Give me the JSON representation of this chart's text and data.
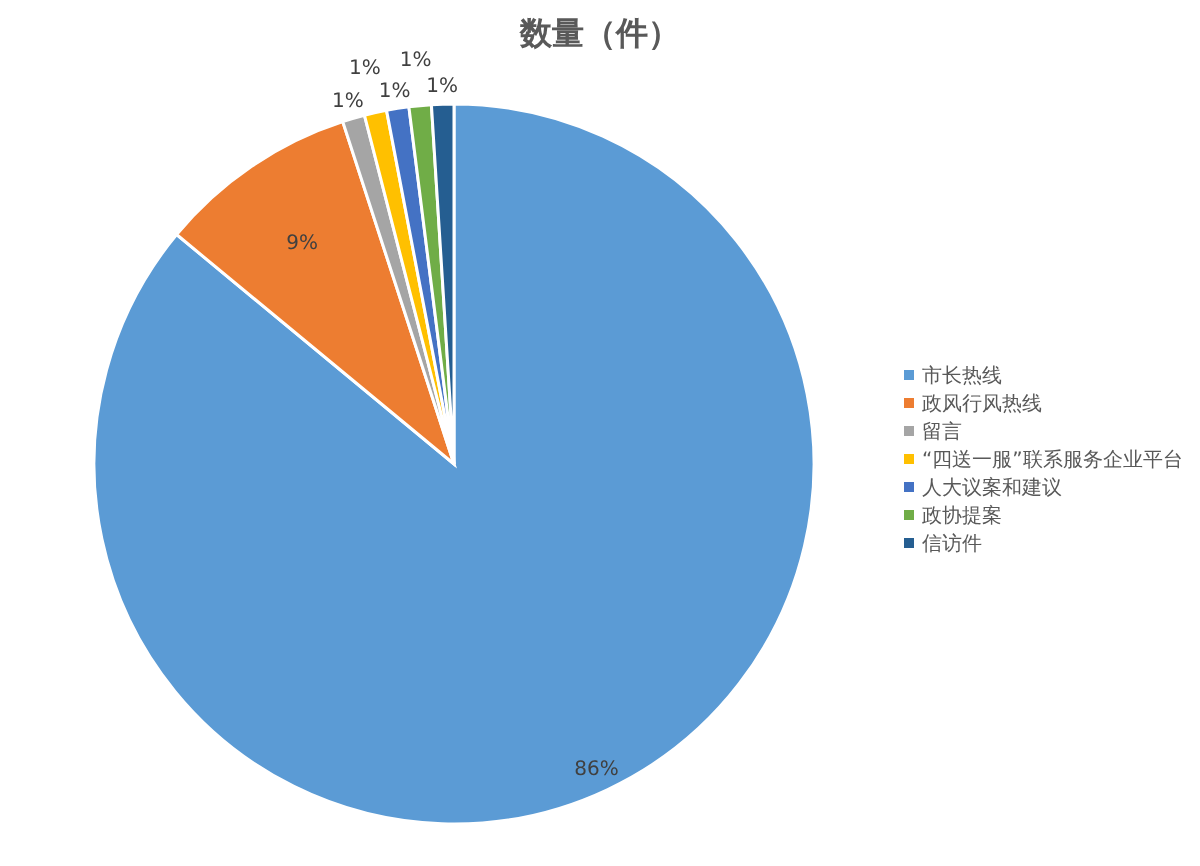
{
  "chart_data": {
    "type": "pie",
    "title": "数量（件）",
    "categories": [
      "市长热线",
      "政风行风热线",
      "留言",
      "“四送一服”联系服务企业平台",
      "人大议案和建议",
      "政协提案",
      "信访件"
    ],
    "values": [
      86,
      9,
      1,
      1,
      1,
      1,
      1
    ],
    "colors": [
      "#5b9bd5",
      "#ed7d31",
      "#a5a5a5",
      "#ffc000",
      "#4472c4",
      "#70ad47",
      "#255e91"
    ],
    "value_labels": [
      "86%",
      "9%",
      "1%",
      "1%",
      "1%",
      "1%",
      "1%"
    ],
    "legend": "right"
  }
}
